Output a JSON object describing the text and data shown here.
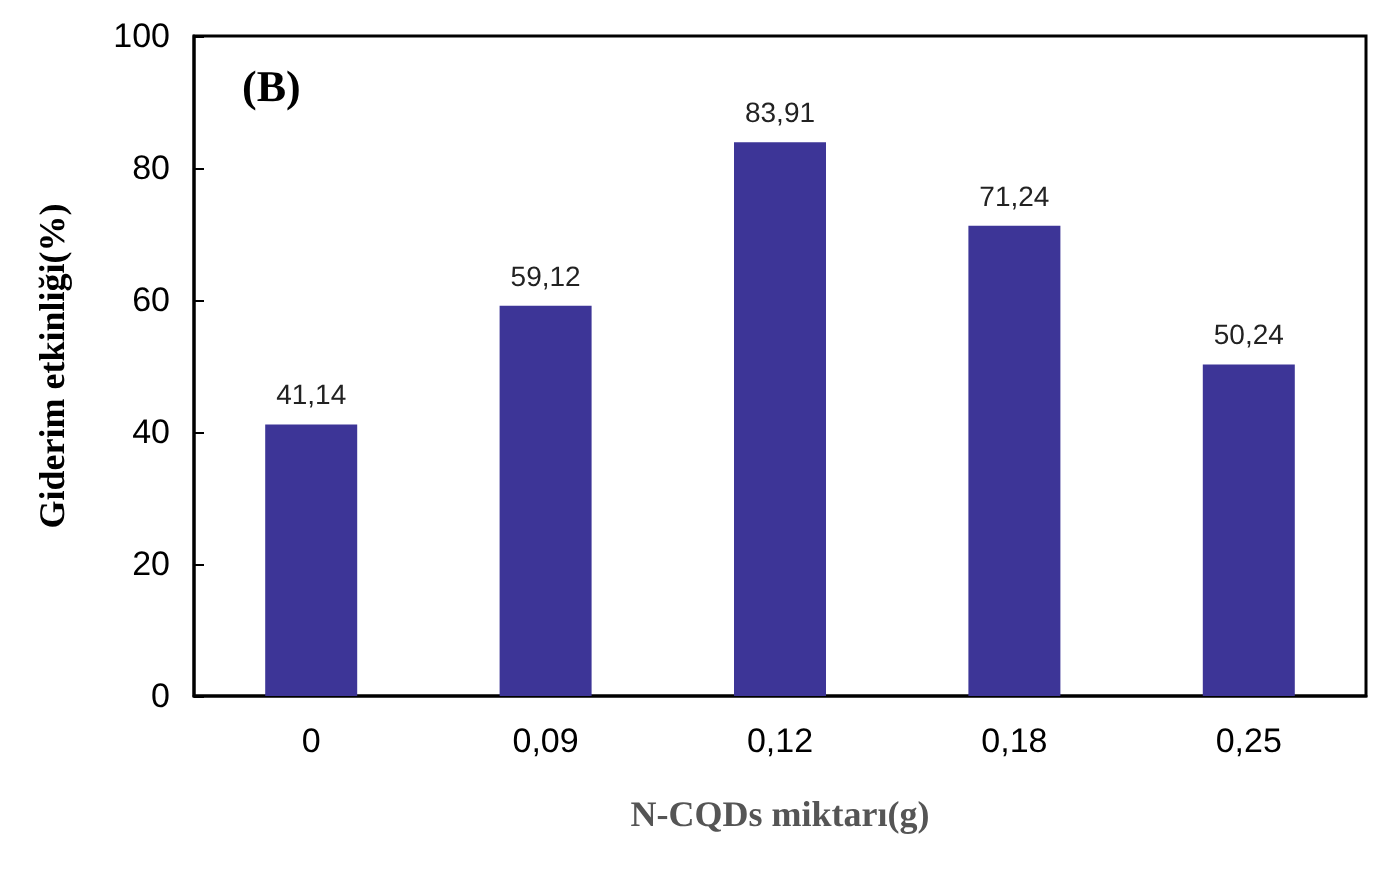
{
  "chart_data": {
    "type": "bar",
    "xlabel": "N-CQDs miktarı(g)",
    "ylabel": "Giderim etkinliği(%)",
    "categories": [
      "0",
      "0,09",
      "0,12",
      "0,18",
      "0,25"
    ],
    "values": [
      41.14,
      59.12,
      83.91,
      71.24,
      50.24
    ],
    "value_labels": [
      "41,14",
      "59,12",
      "83,91",
      "71,24",
      "50,24"
    ],
    "color": "#3d3597",
    "ylim": [
      0,
      100
    ],
    "yticks": [
      0,
      20,
      40,
      60,
      80,
      100
    ],
    "grid": false,
    "annotations": [
      "(B)"
    ]
  }
}
